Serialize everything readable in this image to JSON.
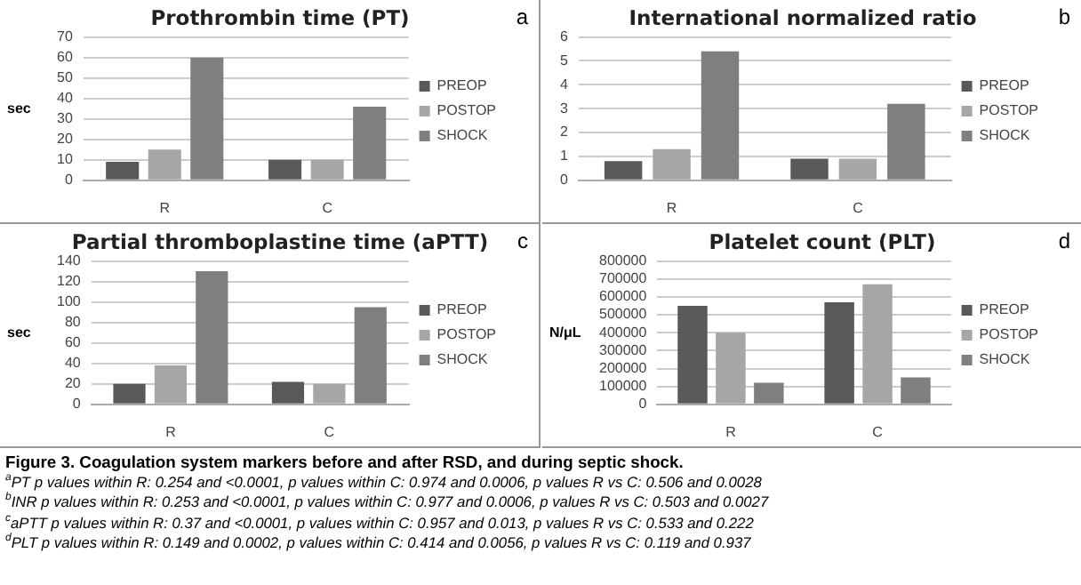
{
  "chart_data": [
    {
      "type": "bar",
      "title": "Prothrombin time (PT)",
      "ylabel": "sec",
      "annotations": [
        "a"
      ],
      "categories": [
        "R",
        "C"
      ],
      "series": [
        {
          "name": "PREOP",
          "color": "#595959",
          "values": [
            9,
            10
          ]
        },
        {
          "name": "POSTOP",
          "color": "#a6a6a6",
          "values": [
            15,
            10
          ]
        },
        {
          "name": "SHOCK",
          "color": "#7f7f7f",
          "values": [
            60,
            36
          ]
        }
      ],
      "ylim": [
        0,
        70
      ],
      "yticks": [
        0,
        10,
        20,
        30,
        40,
        50,
        60,
        70
      ],
      "grid": "y",
      "legend": "right"
    },
    {
      "type": "bar",
      "title": "International normalized ratio",
      "annotations": [
        "b"
      ],
      "categories": [
        "R",
        "C"
      ],
      "series": [
        {
          "name": "PREOP",
          "color": "#595959",
          "values": [
            0.8,
            0.9
          ]
        },
        {
          "name": "POSTOP",
          "color": "#a6a6a6",
          "values": [
            1.3,
            0.9
          ]
        },
        {
          "name": "SHOCK",
          "color": "#7f7f7f",
          "values": [
            5.4,
            3.2
          ]
        }
      ],
      "ylim": [
        0,
        6
      ],
      "yticks": [
        0,
        1,
        2,
        3,
        4,
        5,
        6
      ],
      "grid": "y",
      "legend": "right"
    },
    {
      "type": "bar",
      "title": "Partial thromboplastine time (aPTT)",
      "ylabel": "sec",
      "annotations": [
        "c"
      ],
      "categories": [
        "R",
        "C"
      ],
      "series": [
        {
          "name": "PREOP",
          "color": "#595959",
          "values": [
            20,
            22
          ]
        },
        {
          "name": "POSTOP",
          "color": "#a6a6a6",
          "values": [
            38,
            20
          ]
        },
        {
          "name": "SHOCK",
          "color": "#7f7f7f",
          "values": [
            130,
            95
          ]
        }
      ],
      "ylim": [
        0,
        140
      ],
      "yticks": [
        0,
        20,
        40,
        60,
        80,
        100,
        120,
        140
      ],
      "grid": "y",
      "legend": "right"
    },
    {
      "type": "bar",
      "title": "Platelet count (PLT)",
      "ylabel": "N/μL",
      "annotations": [
        "d"
      ],
      "categories": [
        "R",
        "C"
      ],
      "series": [
        {
          "name": "PREOP",
          "color": "#595959",
          "values": [
            550000,
            570000
          ]
        },
        {
          "name": "POSTOP",
          "color": "#a6a6a6",
          "values": [
            400000,
            670000
          ]
        },
        {
          "name": "SHOCK",
          "color": "#7f7f7f",
          "values": [
            120000,
            150000
          ]
        }
      ],
      "ylim": [
        0,
        800000
      ],
      "yticks": [
        0,
        100000,
        200000,
        300000,
        400000,
        500000,
        600000,
        700000,
        800000
      ],
      "grid": "y",
      "legend": "right"
    },
    {
      "type": "other",
      "title": "Figure 3. Coagulation system markers before and after RSD, and during septic shock.",
      "annotations": [
        "$^{a}$PT p values within R: 0.254 and <0.0001, p values within C: 0.974 and 0.0006, p values R vs C: 0.506 and 0.0028",
        "$^{b}$INR p values within R: 0.253 and <0.0001, p values within C: 0.977 and 0.0006, p values R vs C: 0.503 and 0.0027",
        "$^{c}$aPTT p values within R: 0.37 and <0.0001, p values within C: 0.957 and 0.013, p values R vs C: 0.533 and 0.222",
        "$^{d}$PLT p values within R: 0.149 and 0.0002, p values within C: 0.414 and 0.0056, p values R vs C: 0.119 and 0.937"
      ]
    }
  ]
}
